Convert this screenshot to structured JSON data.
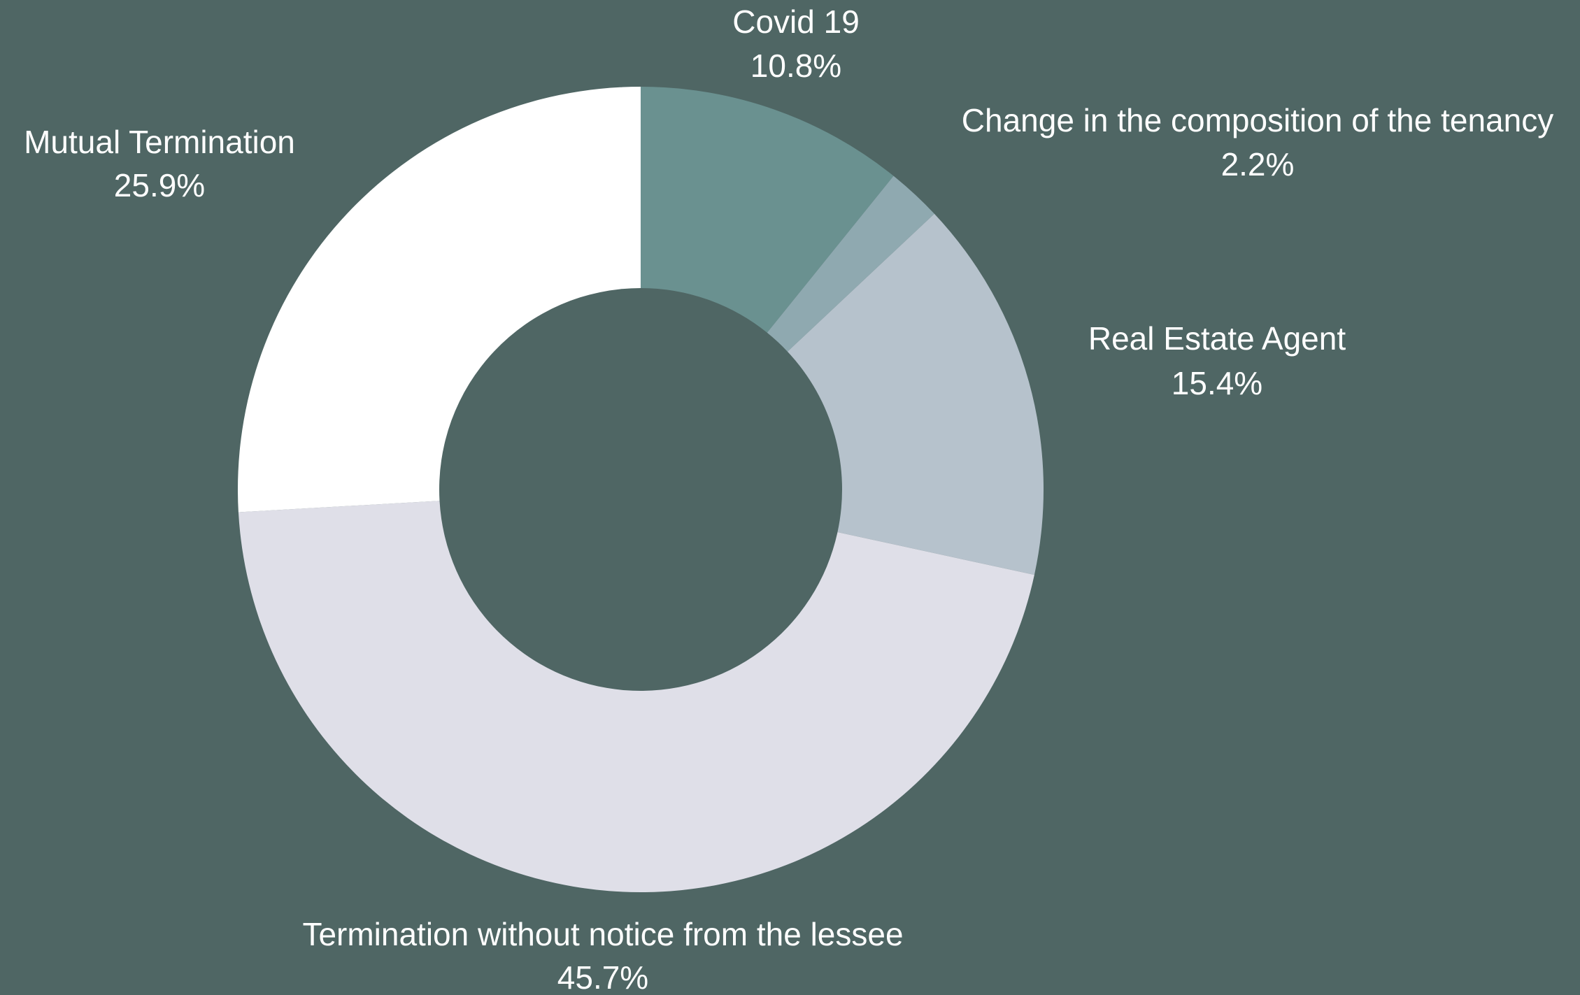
{
  "chart_data": {
    "type": "pie",
    "categories": [
      "Covid 19",
      "Change in the composition of the tenancy",
      "Real Estate Agent",
      "Termination without notice from the lessee",
      "Mutual Termination"
    ],
    "values": [
      10.8,
      2.2,
      15.4,
      45.7,
      25.9
    ],
    "value_labels": [
      "10.8%",
      "2.2%",
      "15.4%",
      "45.7%",
      "25.9%"
    ],
    "colors": [
      "#6a9190",
      "#8fa9b0",
      "#b6c2cc",
      "#dfdfe8",
      "#ffffff"
    ]
  }
}
